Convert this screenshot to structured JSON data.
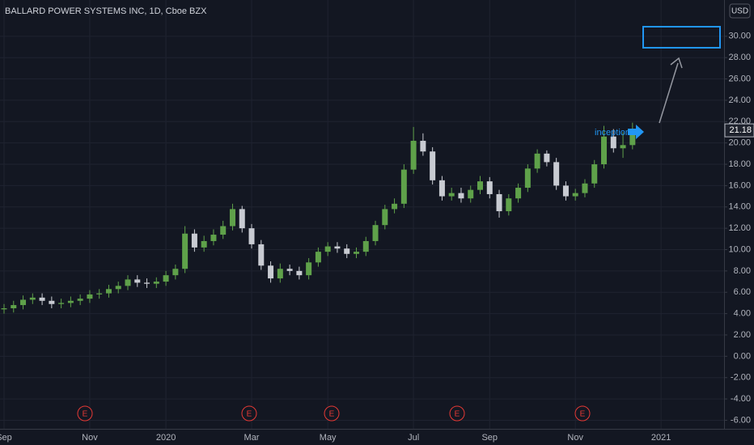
{
  "chart_data": {
    "type": "candlestick",
    "title": "BALLARD POWER SYSTEMS INC, 1D, Cboe BZX",
    "currency": "USD",
    "annotation": "inception",
    "earnings_markers": [
      "E",
      "E",
      "E",
      "E",
      "E"
    ],
    "last_price": 21.18,
    "up_color": "#5fa14a",
    "down_color": "#c8cbd2",
    "grid": true,
    "categories": [
      "Sep",
      null,
      null,
      null,
      null,
      null,
      null,
      null,
      null,
      "Nov",
      null,
      null,
      null,
      null,
      null,
      null,
      null,
      "2020",
      null,
      null,
      null,
      null,
      null,
      null,
      null,
      null,
      "Mar",
      null,
      null,
      null,
      null,
      null,
      null,
      null,
      "May",
      null,
      null,
      null,
      null,
      null,
      null,
      null,
      null,
      "Jul",
      null,
      null,
      null,
      null,
      null,
      null,
      null,
      "Sep",
      null,
      null,
      null,
      null,
      null,
      null,
      null,
      null,
      "Nov",
      null,
      null,
      null,
      null,
      null,
      null,
      null,
      null,
      "2021",
      null,
      null,
      null,
      null,
      null,
      null
    ],
    "open": [
      4.4,
      4.5,
      4.8,
      5.3,
      5.5,
      5.2,
      4.9,
      5.0,
      5.2,
      5.4,
      5.8,
      5.9,
      6.3,
      6.6,
      7.2,
      6.9,
      6.8,
      7.0,
      7.6,
      8.2,
      11.5,
      10.2,
      10.8,
      11.4,
      12.2,
      13.8,
      12.0,
      10.5,
      8.5,
      7.3,
      8.2,
      8.0,
      7.6,
      8.8,
      9.8,
      10.3,
      10.1,
      9.6,
      9.8,
      10.8,
      12.3,
      13.8,
      14.3,
      17.5,
      20.2,
      19.2,
      16.5,
      15.0,
      15.3,
      14.8,
      15.6,
      16.4,
      15.2,
      13.6,
      14.8,
      15.8,
      17.6,
      19.0,
      18.2,
      16.0,
      15.0,
      15.3,
      16.2,
      18.0,
      20.6,
      19.5,
      19.8,
      null,
      null,
      null,
      null,
      null,
      null,
      null,
      null,
      null
    ],
    "high": [
      4.9,
      5.2,
      5.7,
      5.9,
      5.9,
      5.6,
      5.4,
      5.6,
      5.8,
      6.2,
      6.3,
      6.7,
      7.0,
      7.6,
      7.6,
      7.3,
      7.4,
      8.0,
      8.6,
      12.2,
      11.9,
      11.3,
      11.9,
      12.7,
      14.3,
      14.1,
      12.4,
      10.9,
      8.9,
      8.7,
      8.6,
      8.4,
      9.2,
      10.2,
      10.7,
      10.7,
      10.5,
      10.2,
      11.2,
      12.7,
      14.2,
      14.8,
      18.0,
      21.5,
      20.9,
      19.6,
      16.9,
      15.8,
      15.8,
      16.0,
      16.9,
      16.8,
      15.6,
      15.2,
      16.2,
      18.0,
      19.4,
      19.3,
      18.6,
      16.4,
      15.7,
      16.6,
      18.4,
      21.6,
      21.3,
      21.0,
      21.9,
      null,
      null,
      null,
      null,
      null,
      null,
      null,
      null,
      null
    ],
    "low": [
      4.0,
      4.1,
      4.4,
      4.9,
      4.8,
      4.5,
      4.5,
      4.6,
      4.8,
      5.0,
      5.4,
      5.5,
      5.9,
      6.2,
      6.5,
      6.4,
      6.4,
      6.6,
      7.2,
      7.8,
      9.8,
      9.8,
      10.4,
      11.0,
      11.8,
      11.6,
      10.1,
      8.1,
      6.9,
      6.9,
      7.6,
      7.2,
      7.2,
      8.4,
      9.4,
      9.7,
      9.2,
      9.2,
      9.4,
      10.4,
      11.9,
      13.4,
      13.9,
      17.1,
      18.8,
      16.1,
      14.6,
      14.6,
      14.4,
      14.4,
      15.2,
      14.8,
      13.0,
      13.2,
      14.4,
      15.4,
      17.2,
      17.8,
      15.6,
      14.6,
      14.6,
      14.9,
      15.8,
      17.6,
      19.1,
      18.6,
      19.4,
      null,
      null,
      null,
      null,
      null,
      null,
      null,
      null,
      null
    ],
    "close": [
      4.5,
      4.8,
      5.3,
      5.5,
      5.2,
      4.9,
      5.0,
      5.2,
      5.4,
      5.8,
      5.9,
      6.3,
      6.6,
      7.2,
      6.9,
      6.8,
      7.0,
      7.6,
      8.2,
      11.5,
      10.2,
      10.8,
      11.4,
      12.2,
      13.8,
      12.0,
      10.5,
      8.5,
      7.3,
      8.2,
      8.0,
      7.6,
      8.8,
      9.8,
      10.3,
      10.1,
      9.6,
      9.8,
      10.8,
      12.3,
      13.8,
      14.3,
      17.5,
      20.2,
      19.2,
      16.5,
      15.0,
      15.3,
      14.8,
      15.6,
      16.4,
      15.2,
      13.6,
      14.8,
      15.8,
      17.6,
      19.0,
      18.2,
      16.0,
      15.0,
      15.3,
      16.2,
      18.0,
      20.6,
      19.5,
      19.8,
      21.18,
      null,
      null,
      null,
      null,
      null,
      null,
      null,
      null,
      null
    ],
    "ylim": [
      -6.8,
      33.4
    ],
    "yticks": [
      {
        "value": -6,
        "label": "-6.00"
      },
      {
        "value": -4,
        "label": "-4.00"
      },
      {
        "value": -2,
        "label": "-2.00"
      },
      {
        "value": 0,
        "label": "0.00"
      },
      {
        "value": 2,
        "label": "2.00"
      },
      {
        "value": 4,
        "label": "4.00"
      },
      {
        "value": 6,
        "label": "6.00"
      },
      {
        "value": 8,
        "label": "8.00"
      },
      {
        "value": 10,
        "label": "10.00"
      },
      {
        "value": 12,
        "label": "12.00"
      },
      {
        "value": 14,
        "label": "14.00"
      },
      {
        "value": 16,
        "label": "16.00"
      },
      {
        "value": 18,
        "label": "18.00"
      },
      {
        "value": 20,
        "label": "20.00"
      },
      {
        "value": 22,
        "label": "22.00"
      },
      {
        "value": 24,
        "label": "24.00"
      },
      {
        "value": 26,
        "label": "26.00"
      },
      {
        "value": 28,
        "label": "28.00"
      },
      {
        "value": 30,
        "label": "30.00"
      }
    ]
  }
}
